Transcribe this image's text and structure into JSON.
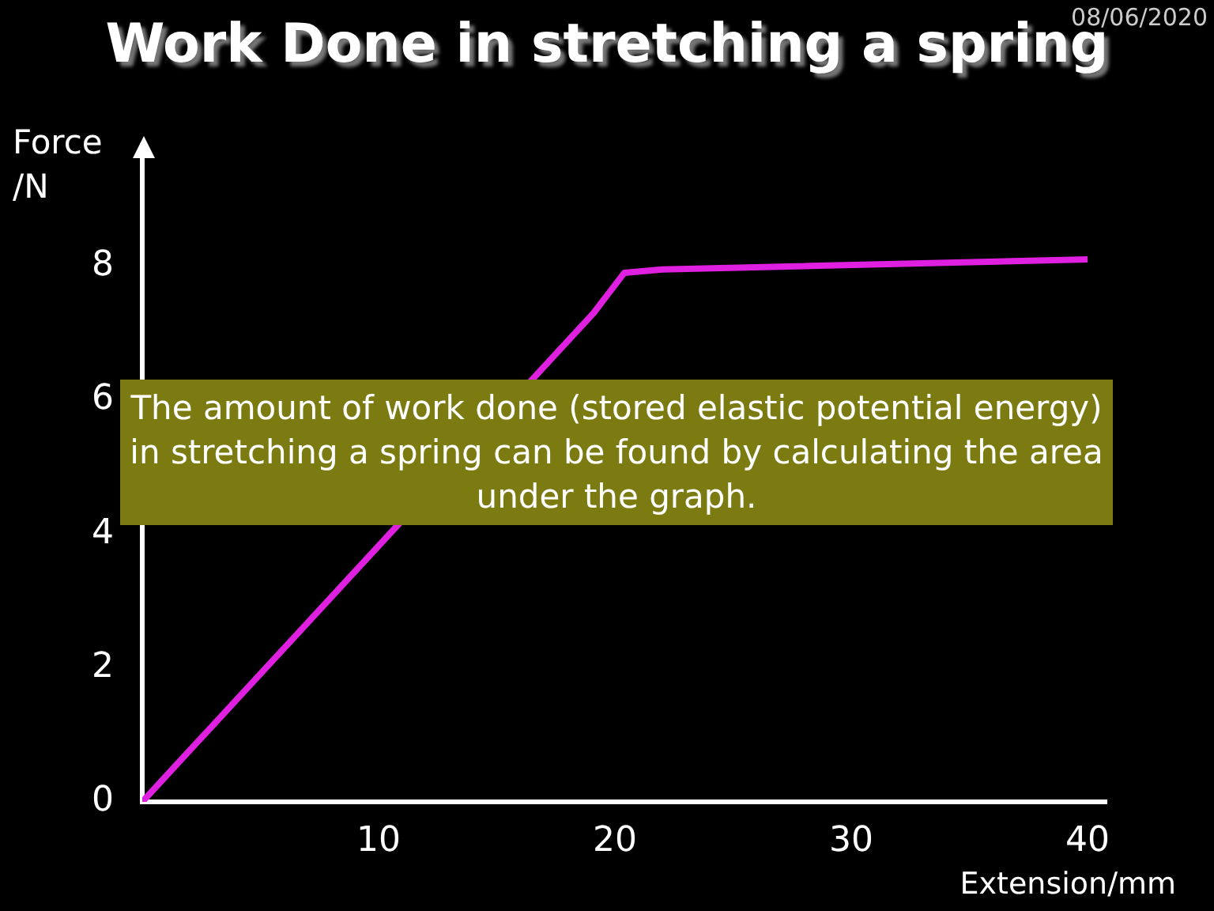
{
  "chart_data": {
    "type": "line",
    "title": "Work Done in stretching a spring",
    "xlabel": "Extension/mm",
    "ylabel": "Force /N",
    "x": [
      0,
      19.1,
      20.4,
      22,
      40
    ],
    "series": [
      {
        "color": "#e020e0",
        "values": [
          0,
          7.3,
          7.9,
          7.95,
          8.1
        ]
      }
    ],
    "xlim": [
      0,
      40.8
    ],
    "ylim": [
      0,
      9.8
    ],
    "xticks": [
      10,
      20,
      30,
      40
    ],
    "yticks": [
      0,
      2,
      4,
      6,
      8
    ],
    "grid": false,
    "legend": false,
    "marker": "none",
    "line_style": "solid",
    "annotations": [
      "08/06/2020",
      "The amount of work done (stored elastic potential energy) in stretching a spring can be found by calculating the area under the graph."
    ]
  }
}
